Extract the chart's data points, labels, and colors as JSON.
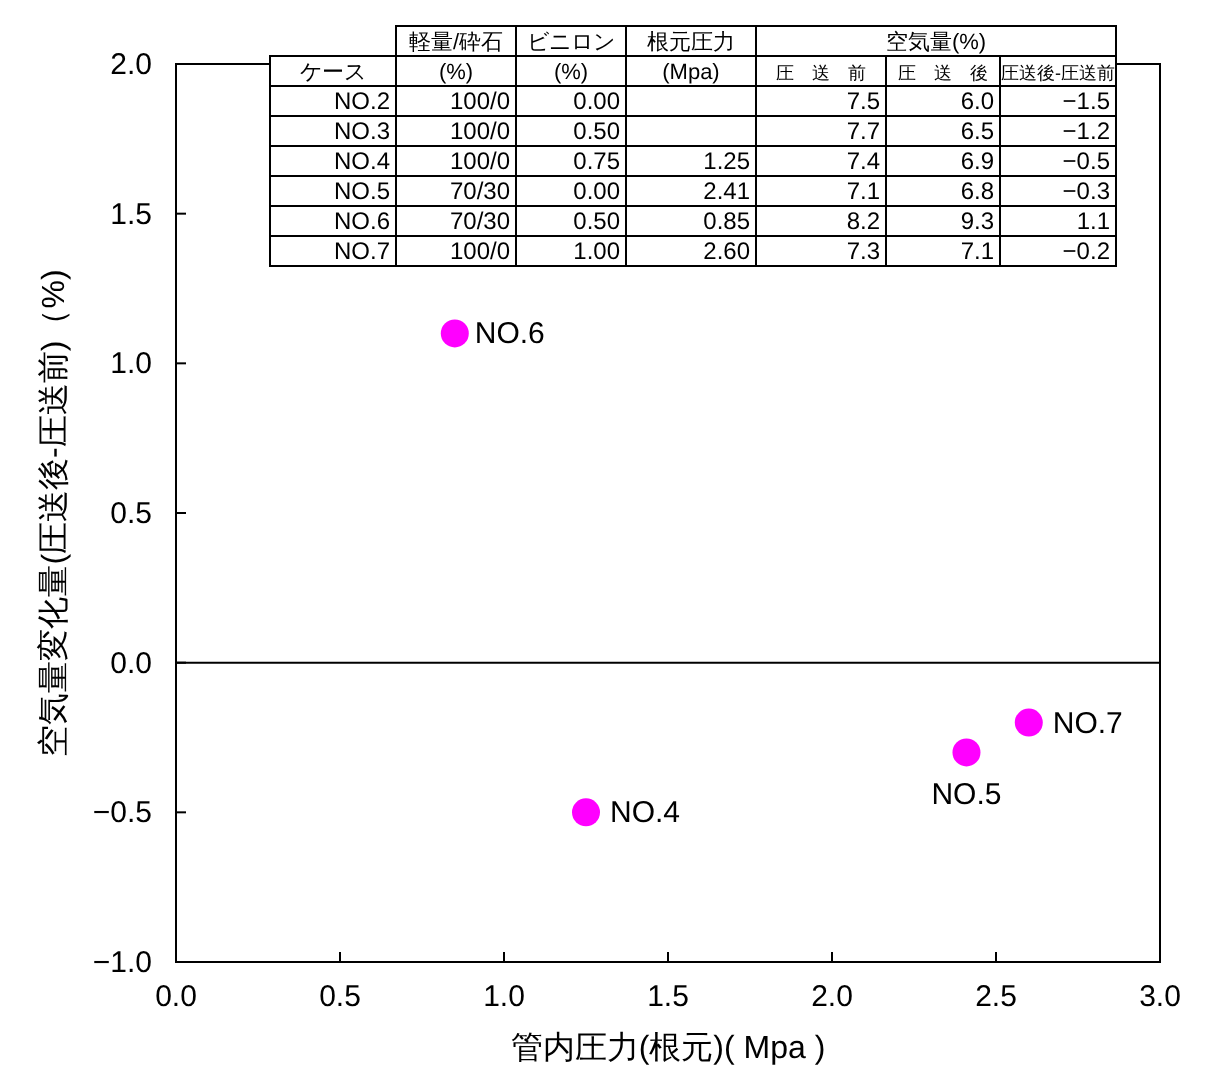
{
  "chart_data": [
    {
      "type": "scatter",
      "xlabel": "管内圧力(根元)( Mpa )",
      "ylabel": "空気量変化量(圧送後-圧送前)（%)",
      "marker": "circle",
      "grid": false,
      "series": [
        {
          "color": "#ff00ff",
          "x": [
            0.85,
            1.25,
            2.41,
            2.6
          ],
          "values": [
            1.1,
            -0.5,
            -0.3,
            -0.2
          ]
        }
      ],
      "xlim": [
        0,
        3
      ],
      "xticks": [
        {
          "value": 0,
          "label": "0.0"
        },
        {
          "value": 0.5,
          "label": "0.5"
        },
        {
          "value": 1,
          "label": "1.0"
        },
        {
          "value": 1.5,
          "label": "1.5"
        },
        {
          "value": 2,
          "label": "2.0"
        },
        {
          "value": 2.5,
          "label": "2.5"
        },
        {
          "value": 3,
          "label": "3.0"
        }
      ],
      "ylim": [
        -1,
        2
      ],
      "yticks": [
        {
          "value": -1,
          "label": "−1.0"
        },
        {
          "value": -0.5,
          "label": "−0.5"
        },
        {
          "value": 0,
          "label": "0.0"
        },
        {
          "value": 0.5,
          "label": "0.5"
        },
        {
          "value": 1,
          "label": "1.0"
        },
        {
          "value": 1.5,
          "label": "1.5"
        },
        {
          "value": 2,
          "label": "2.0"
        }
      ],
      "ref_lines": [
        {
          "axis": "y",
          "value": 0,
          "color": "#000000"
        }
      ],
      "annotations": [
        {
          "text": "NO.6",
          "x": 0.85,
          "y": 1.1
        },
        {
          "text": "NO.4",
          "x": 1.25,
          "y": -0.5
        },
        {
          "text": "NO.5",
          "x": 2.41,
          "y": -0.3
        },
        {
          "text": "NO.7",
          "x": 2.6,
          "y": -0.2
        }
      ]
    },
    {
      "type": "other",
      "annotations": [
        "軽量/砕石",
        "ビニロン",
        "根元圧力",
        "空気量(%)",
        "ケース",
        "(%)",
        "(%)",
        "(Mpa)",
        "圧　送　前",
        "圧　送　後",
        "圧送後-圧送前",
        "NO.2",
        "100/0",
        "0.00",
        null,
        "7.5",
        "6.0",
        "−1.5",
        "NO.3",
        "100/0",
        "0.50",
        null,
        "7.7",
        "6.5",
        "−1.2",
        "NO.4",
        "100/0",
        "0.75",
        "1.25",
        "7.4",
        "6.9",
        "−0.5",
        "NO.5",
        "70/30",
        "0.00",
        "2.41",
        "7.1",
        "6.8",
        "−0.3",
        "NO.6",
        "70/30",
        "0.50",
        "0.85",
        "8.2",
        "9.3",
        "1.1",
        "NO.7",
        "100/0",
        "1.00",
        "2.60",
        "7.3",
        "7.1",
        "−0.2"
      ]
    }
  ]
}
